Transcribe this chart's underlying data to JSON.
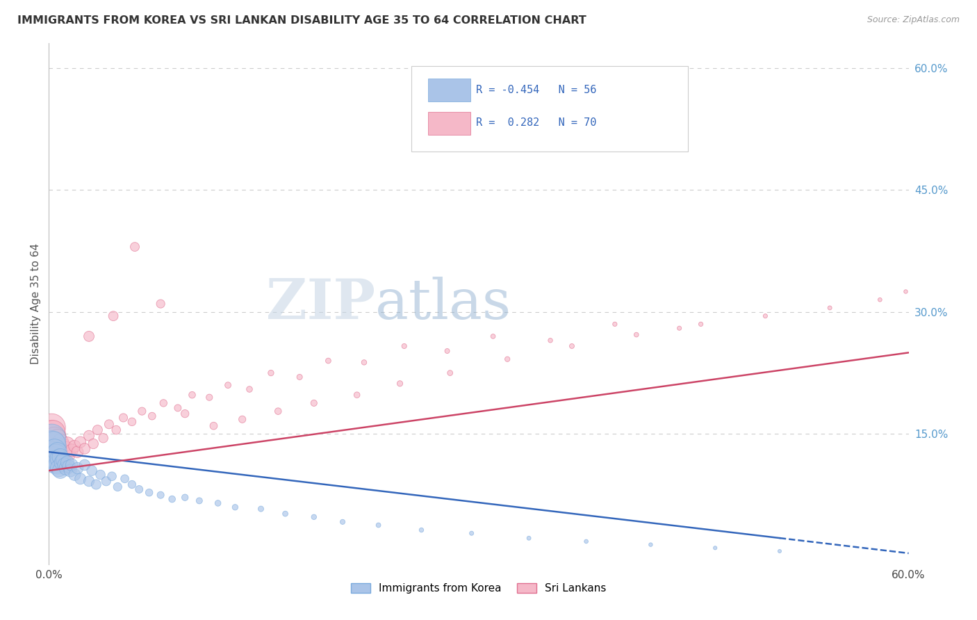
{
  "title": "IMMIGRANTS FROM KOREA VS SRI LANKAN DISABILITY AGE 35 TO 64 CORRELATION CHART",
  "source": "Source: ZipAtlas.com",
  "ylabel": "Disability Age 35 to 64",
  "xlim": [
    0.0,
    0.6
  ],
  "ylim": [
    -0.01,
    0.63
  ],
  "grid_color": "#cccccc",
  "background_color": "#ffffff",
  "korea_color": "#aac4e8",
  "korea_edge_color": "#7aaadd",
  "srilanka_color": "#f5b8c8",
  "srilanka_edge_color": "#e07090",
  "korea_R": -0.454,
  "korea_N": 56,
  "srilanka_R": 0.282,
  "srilanka_N": 70,
  "trend_korea_color": "#3366bb",
  "trend_srilanka_color": "#cc4466",
  "watermark_zip_color": "#b8c8d8",
  "watermark_atlas_color": "#88aacc",
  "legend_korea_label": "Immigrants from Korea",
  "legend_srilanka_label": "Sri Lankans",
  "korea_x": [
    0.001,
    0.002,
    0.002,
    0.003,
    0.003,
    0.004,
    0.004,
    0.005,
    0.005,
    0.006,
    0.006,
    0.007,
    0.007,
    0.008,
    0.008,
    0.009,
    0.01,
    0.011,
    0.012,
    0.013,
    0.014,
    0.015,
    0.016,
    0.018,
    0.02,
    0.022,
    0.025,
    0.028,
    0.03,
    0.033,
    0.036,
    0.04,
    0.044,
    0.048,
    0.053,
    0.058,
    0.063,
    0.07,
    0.078,
    0.086,
    0.095,
    0.105,
    0.118,
    0.13,
    0.148,
    0.165,
    0.185,
    0.205,
    0.23,
    0.26,
    0.295,
    0.335,
    0.375,
    0.42,
    0.465,
    0.51
  ],
  "korea_y": [
    0.135,
    0.145,
    0.125,
    0.138,
    0.12,
    0.13,
    0.115,
    0.125,
    0.118,
    0.128,
    0.112,
    0.12,
    0.108,
    0.122,
    0.105,
    0.115,
    0.118,
    0.112,
    0.108,
    0.115,
    0.11,
    0.105,
    0.112,
    0.1,
    0.108,
    0.095,
    0.112,
    0.092,
    0.105,
    0.088,
    0.1,
    0.092,
    0.098,
    0.085,
    0.095,
    0.088,
    0.082,
    0.078,
    0.075,
    0.07,
    0.072,
    0.068,
    0.065,
    0.06,
    0.058,
    0.052,
    0.048,
    0.042,
    0.038,
    0.032,
    0.028,
    0.022,
    0.018,
    0.014,
    0.01,
    0.006
  ],
  "korea_size": [
    900,
    700,
    600,
    550,
    500,
    450,
    420,
    380,
    350,
    320,
    300,
    280,
    260,
    240,
    220,
    200,
    190,
    180,
    170,
    160,
    150,
    140,
    135,
    125,
    118,
    110,
    105,
    98,
    92,
    86,
    80,
    75,
    70,
    65,
    60,
    56,
    52,
    48,
    44,
    40,
    38,
    35,
    32,
    30,
    28,
    26,
    24,
    22,
    20,
    18,
    16,
    15,
    14,
    13,
    12,
    11
  ],
  "srilanka_x": [
    0.001,
    0.002,
    0.002,
    0.003,
    0.003,
    0.004,
    0.004,
    0.005,
    0.005,
    0.006,
    0.006,
    0.007,
    0.008,
    0.009,
    0.01,
    0.011,
    0.012,
    0.013,
    0.014,
    0.016,
    0.018,
    0.02,
    0.022,
    0.025,
    0.028,
    0.031,
    0.034,
    0.038,
    0.042,
    0.047,
    0.052,
    0.058,
    0.065,
    0.072,
    0.08,
    0.09,
    0.1,
    0.112,
    0.125,
    0.14,
    0.155,
    0.175,
    0.195,
    0.22,
    0.248,
    0.278,
    0.31,
    0.35,
    0.395,
    0.44,
    0.028,
    0.045,
    0.06,
    0.078,
    0.095,
    0.115,
    0.135,
    0.16,
    0.185,
    0.215,
    0.245,
    0.28,
    0.32,
    0.365,
    0.41,
    0.455,
    0.5,
    0.545,
    0.58,
    0.598
  ],
  "srilanka_y": [
    0.148,
    0.158,
    0.138,
    0.152,
    0.13,
    0.145,
    0.125,
    0.14,
    0.118,
    0.135,
    0.145,
    0.13,
    0.14,
    0.125,
    0.135,
    0.128,
    0.132,
    0.138,
    0.125,
    0.13,
    0.135,
    0.128,
    0.14,
    0.132,
    0.148,
    0.138,
    0.155,
    0.145,
    0.162,
    0.155,
    0.17,
    0.165,
    0.178,
    0.172,
    0.188,
    0.182,
    0.198,
    0.195,
    0.21,
    0.205,
    0.225,
    0.22,
    0.24,
    0.238,
    0.258,
    0.252,
    0.27,
    0.265,
    0.285,
    0.28,
    0.27,
    0.295,
    0.38,
    0.31,
    0.175,
    0.16,
    0.168,
    0.178,
    0.188,
    0.198,
    0.212,
    0.225,
    0.242,
    0.258,
    0.272,
    0.285,
    0.295,
    0.305,
    0.315,
    0.325
  ],
  "srilanka_size": [
    850,
    680,
    580,
    520,
    480,
    440,
    400,
    370,
    340,
    310,
    285,
    265,
    245,
    225,
    208,
    192,
    178,
    165,
    152,
    140,
    130,
    120,
    112,
    104,
    97,
    90,
    84,
    78,
    73,
    68,
    63,
    58,
    54,
    50,
    47,
    43,
    40,
    37,
    34,
    32,
    30,
    28,
    26,
    24,
    22,
    21,
    19,
    18,
    17,
    16,
    95,
    82,
    72,
    64,
    56,
    50,
    45,
    40,
    36,
    32,
    29,
    26,
    23,
    21,
    19,
    17,
    16,
    15,
    14,
    13
  ]
}
